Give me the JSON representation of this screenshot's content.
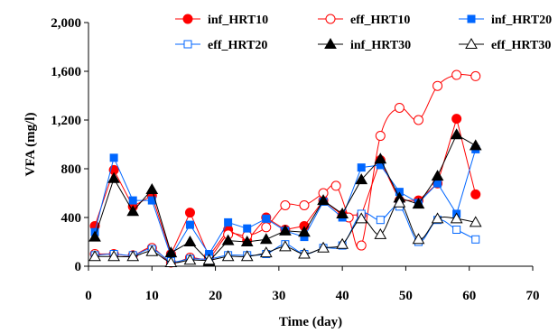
{
  "chart_data": {
    "type": "line",
    "xlabel": "Time (day)",
    "ylabel": "VFA (mg/l)",
    "xlim": [
      0,
      70
    ],
    "ylim": [
      0,
      2000
    ],
    "x_ticks": [
      0,
      10,
      20,
      30,
      40,
      50,
      60,
      70
    ],
    "y_ticks": [
      0,
      400,
      800,
      1200,
      1600,
      2000
    ],
    "x_tick_labels": [
      "0",
      "10",
      "20",
      "30",
      "40",
      "50",
      "60",
      "70"
    ],
    "y_tick_labels": [
      "0",
      "400",
      "800",
      "1,200",
      "1,600",
      "2,000"
    ],
    "grid": false,
    "legend_position": "top-right",
    "series": [
      {
        "name": "inf_HRT10",
        "color": "#ff0000",
        "marker": "circle-filled",
        "smooth": false,
        "x": [
          1,
          4,
          7,
          10,
          13,
          16,
          19,
          22,
          25,
          28,
          31,
          34,
          37,
          40,
          43,
          46,
          49,
          52,
          55,
          58,
          61
        ],
        "y": [
          330,
          790,
          490,
          580,
          100,
          440,
          80,
          300,
          210,
          400,
          300,
          330,
          540,
          420,
          420,
          870,
          540,
          540,
          680,
          1210,
          590
        ]
      },
      {
        "name": "eff_HRT10",
        "color": "#ff0000",
        "marker": "circle-open",
        "smooth": true,
        "x": [
          1,
          4,
          7,
          10,
          13,
          16,
          19,
          22,
          25,
          28,
          31,
          34,
          37,
          39,
          41,
          43,
          46,
          49,
          52,
          55,
          58,
          61
        ],
        "y": [
          100,
          100,
          90,
          150,
          30,
          70,
          70,
          260,
          250,
          320,
          500,
          500,
          600,
          660,
          400,
          170,
          1070,
          1300,
          1200,
          1480,
          1570,
          1560
        ]
      },
      {
        "name": "inf_HRT20",
        "color": "#0066ff",
        "marker": "square-filled",
        "smooth": false,
        "x": [
          1,
          4,
          7,
          10,
          13,
          16,
          19,
          22,
          25,
          28,
          31,
          34,
          37,
          40,
          43,
          46,
          49,
          52,
          55,
          58,
          61
        ],
        "y": [
          280,
          890,
          540,
          540,
          80,
          340,
          100,
          360,
          310,
          390,
          290,
          240,
          530,
          400,
          810,
          830,
          610,
          520,
          680,
          430,
          960
        ]
      },
      {
        "name": "eff_HRT20",
        "color": "#0066ff",
        "marker": "square-open",
        "smooth": true,
        "x": [
          1,
          4,
          7,
          10,
          13,
          16,
          19,
          22,
          25,
          28,
          31,
          34,
          37,
          40,
          43,
          46,
          49,
          52,
          55,
          58,
          61
        ],
        "y": [
          90,
          100,
          90,
          140,
          40,
          60,
          60,
          90,
          90,
          100,
          180,
          100,
          150,
          170,
          430,
          380,
          490,
          200,
          380,
          300,
          220
        ]
      },
      {
        "name": "inf_HRT30",
        "color": "#000000",
        "marker": "triangle-filled",
        "smooth": false,
        "x": [
          1,
          4,
          7,
          10,
          13,
          16,
          19,
          22,
          25,
          28,
          31,
          34,
          37,
          40,
          43,
          46,
          49,
          52,
          55,
          58,
          61
        ],
        "y": [
          240,
          720,
          450,
          630,
          110,
          200,
          40,
          210,
          200,
          220,
          290,
          280,
          540,
          430,
          710,
          880,
          560,
          510,
          740,
          1080,
          990
        ]
      },
      {
        "name": "eff_HRT30",
        "color": "#000000",
        "marker": "triangle-open",
        "smooth": true,
        "x": [
          1,
          4,
          7,
          10,
          13,
          16,
          19,
          22,
          25,
          28,
          31,
          34,
          37,
          40,
          43,
          46,
          49,
          52,
          55,
          58,
          61
        ],
        "y": [
          80,
          80,
          80,
          120,
          30,
          50,
          50,
          80,
          80,
          110,
          160,
          100,
          150,
          180,
          390,
          260,
          520,
          220,
          390,
          390,
          360
        ]
      }
    ]
  }
}
